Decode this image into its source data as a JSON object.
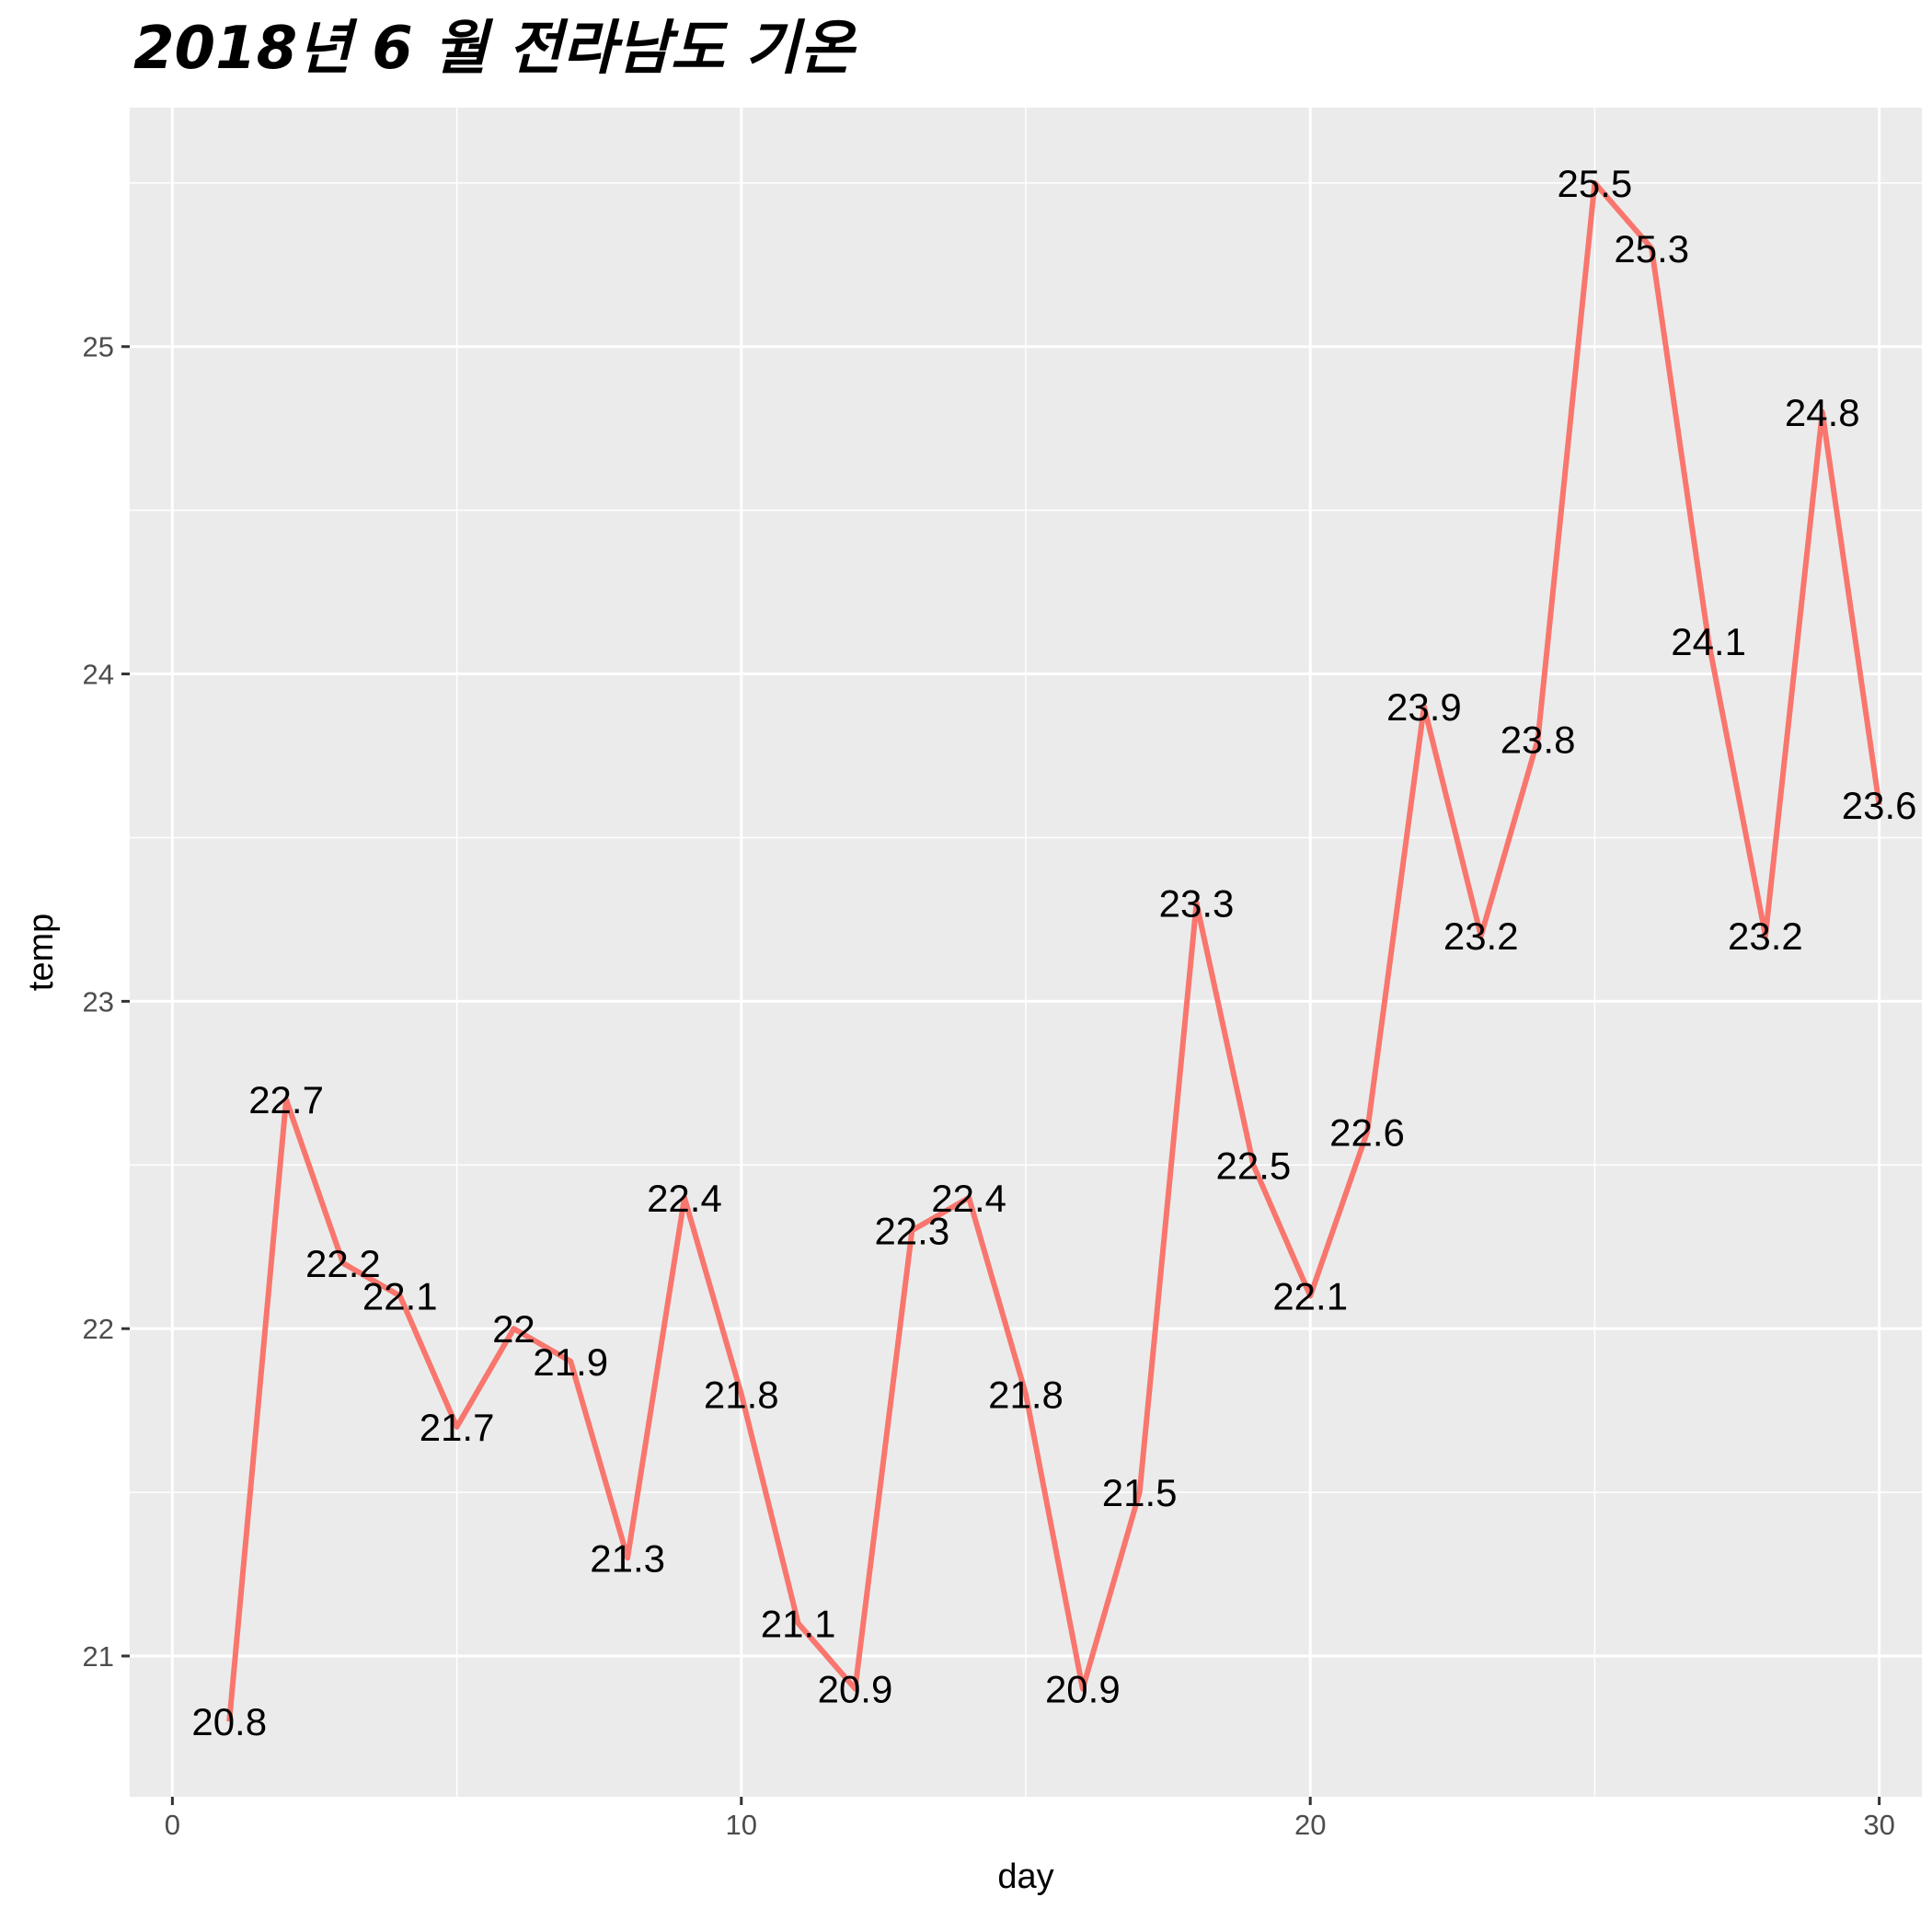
{
  "chart_data": {
    "type": "line",
    "title": "2018년 6 월 전라남도 기온",
    "xlabel": "day",
    "ylabel": "temp",
    "xlim": [
      -0.75,
      30.75
    ],
    "ylim": [
      20.57,
      25.73
    ],
    "x_ticks": [
      0,
      10,
      20,
      30
    ],
    "y_ticks": [
      21,
      22,
      23,
      24,
      25
    ],
    "grid": true,
    "legend": "none",
    "line_color": "#F8766D",
    "background_color": "#EBEBEB",
    "series": [
      {
        "x": [
          1,
          2,
          3,
          4,
          5,
          6,
          7,
          8,
          9,
          10,
          11,
          12,
          13,
          14,
          15,
          16,
          17,
          18,
          19,
          20,
          21,
          22,
          23,
          24,
          25,
          26,
          27,
          28,
          29,
          30
        ],
        "values": [
          20.8,
          22.7,
          22.2,
          22.1,
          21.7,
          22.0,
          21.9,
          21.3,
          22.4,
          21.8,
          21.1,
          20.9,
          22.3,
          22.4,
          21.8,
          20.9,
          21.5,
          23.3,
          22.5,
          22.1,
          22.6,
          23.9,
          23.2,
          23.8,
          25.5,
          25.3,
          24.1,
          23.2,
          24.8,
          23.6
        ],
        "labels": [
          "20.8",
          "22.7",
          "22.2",
          "22.1",
          "21.7",
          "22",
          "21.9",
          "21.3",
          "22.4",
          "21.8",
          "21.1",
          "20.9",
          "22.3",
          "22.4",
          "21.8",
          "20.9",
          "21.5",
          "23.3",
          "22.5",
          "22.1",
          "22.6",
          "23.9",
          "23.2",
          "23.8",
          "25.5",
          "25.3",
          "24.1",
          "23.2",
          "24.8",
          "23.6"
        ]
      }
    ]
  }
}
